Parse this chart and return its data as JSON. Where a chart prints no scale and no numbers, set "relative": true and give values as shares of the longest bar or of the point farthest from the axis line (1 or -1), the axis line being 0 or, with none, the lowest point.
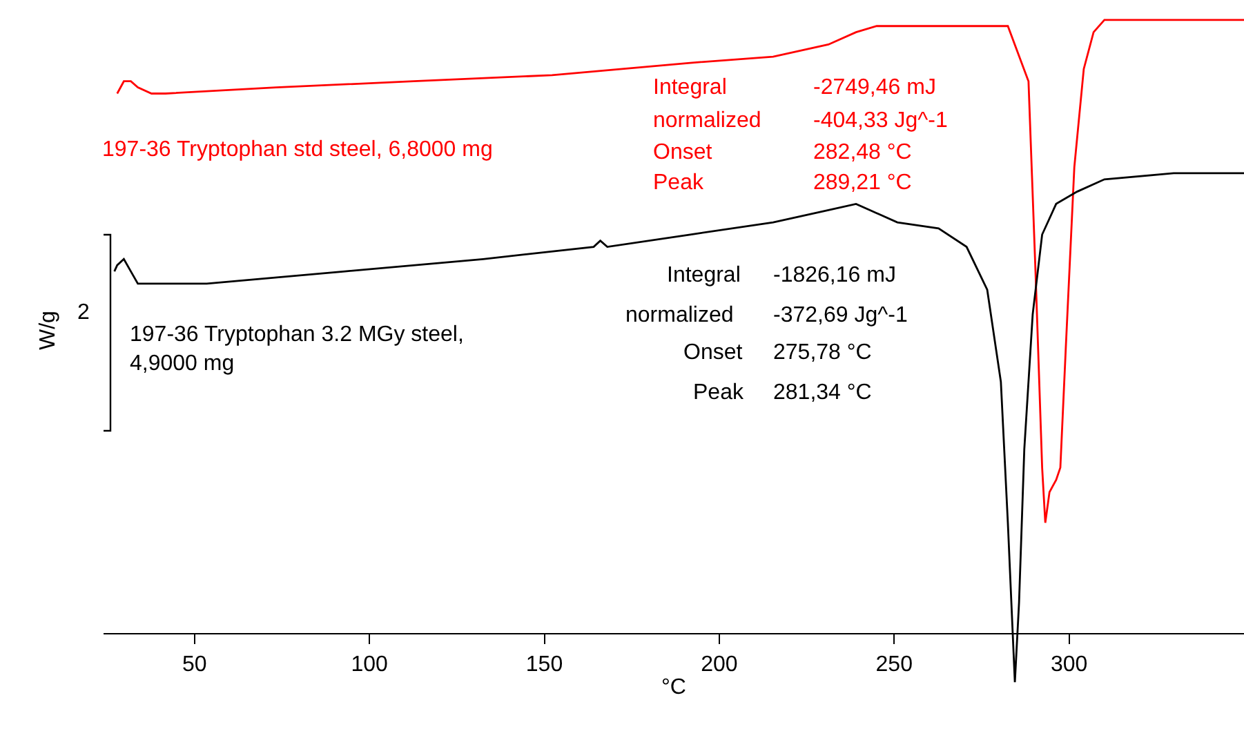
{
  "chart_data": {
    "type": "line",
    "relative": true,
    "xlabel": "°C",
    "ylabel": "W/g",
    "xlim": [
      24,
      350
    ],
    "xticks": [
      50,
      100,
      150,
      200,
      250,
      300
    ],
    "marker": "none",
    "line_style": "solid",
    "series": [
      {
        "color": "#ff0000",
        "x": [
          27.9,
          29.8,
          31.8,
          33.8,
          37.7,
          41.7,
          73.3,
          112.7,
          152.2,
          191.7,
          215.4,
          231.2,
          239.1,
          245.0,
          250.9,
          270.7,
          282.5,
          288.4,
          290.4,
          292.3,
          293.2,
          294.4,
          296.3,
          297.5,
          299.1,
          301.5,
          304.2,
          307.0,
          310.1,
          318.0,
          350.0
        ],
        "values": [
          0.88,
          0.9,
          0.9,
          0.89,
          0.88,
          0.88,
          0.89,
          0.9,
          0.91,
          0.93,
          0.94,
          0.96,
          0.98,
          0.99,
          0.99,
          0.99,
          0.99,
          0.9,
          0.59,
          0.27,
          0.18,
          0.23,
          0.25,
          0.27,
          0.47,
          0.76,
          0.92,
          0.98,
          1.0,
          1.0,
          1.0
        ]
      },
      {
        "color": "#000000",
        "x": [
          27.1,
          27.9,
          29.8,
          31.8,
          33.8,
          37.7,
          53.5,
          93.0,
          132.5,
          164.1,
          166.0,
          168.0,
          191.7,
          215.4,
          231.2,
          239.1,
          243.0,
          250.9,
          262.7,
          270.7,
          276.6,
          280.5,
          282.5,
          284.5,
          285.7,
          287.2,
          289.6,
          292.3,
          296.3,
          302.3,
          310.1,
          329.9,
          350.0
        ],
        "values": [
          0.59,
          0.6,
          0.61,
          0.59,
          0.57,
          0.57,
          0.57,
          0.59,
          0.61,
          0.63,
          0.64,
          0.63,
          0.65,
          0.67,
          0.69,
          0.7,
          0.69,
          0.67,
          0.66,
          0.63,
          0.56,
          0.41,
          0.18,
          -0.08,
          0.05,
          0.3,
          0.52,
          0.65,
          0.7,
          0.72,
          0.74,
          0.75,
          0.75
        ]
      }
    ],
    "annotations": [
      "197-36 Tryptophan std steel, 6,8000 mg",
      "Integral",
      "-2749,46 mJ",
      "normalized",
      "-404,33 Jg^-1",
      "Onset",
      "282,48 °C",
      "Peak",
      "289,21 °C",
      "197-36 Tryptophan 3.2 MGy steel,\n4,9000 mg",
      "Integral",
      "-1826,16 mJ",
      "normalized",
      "-372,69 Jg^-1",
      "Onset",
      "275,78 °C",
      "Peak",
      "281,34 °C",
      "2"
    ]
  }
}
